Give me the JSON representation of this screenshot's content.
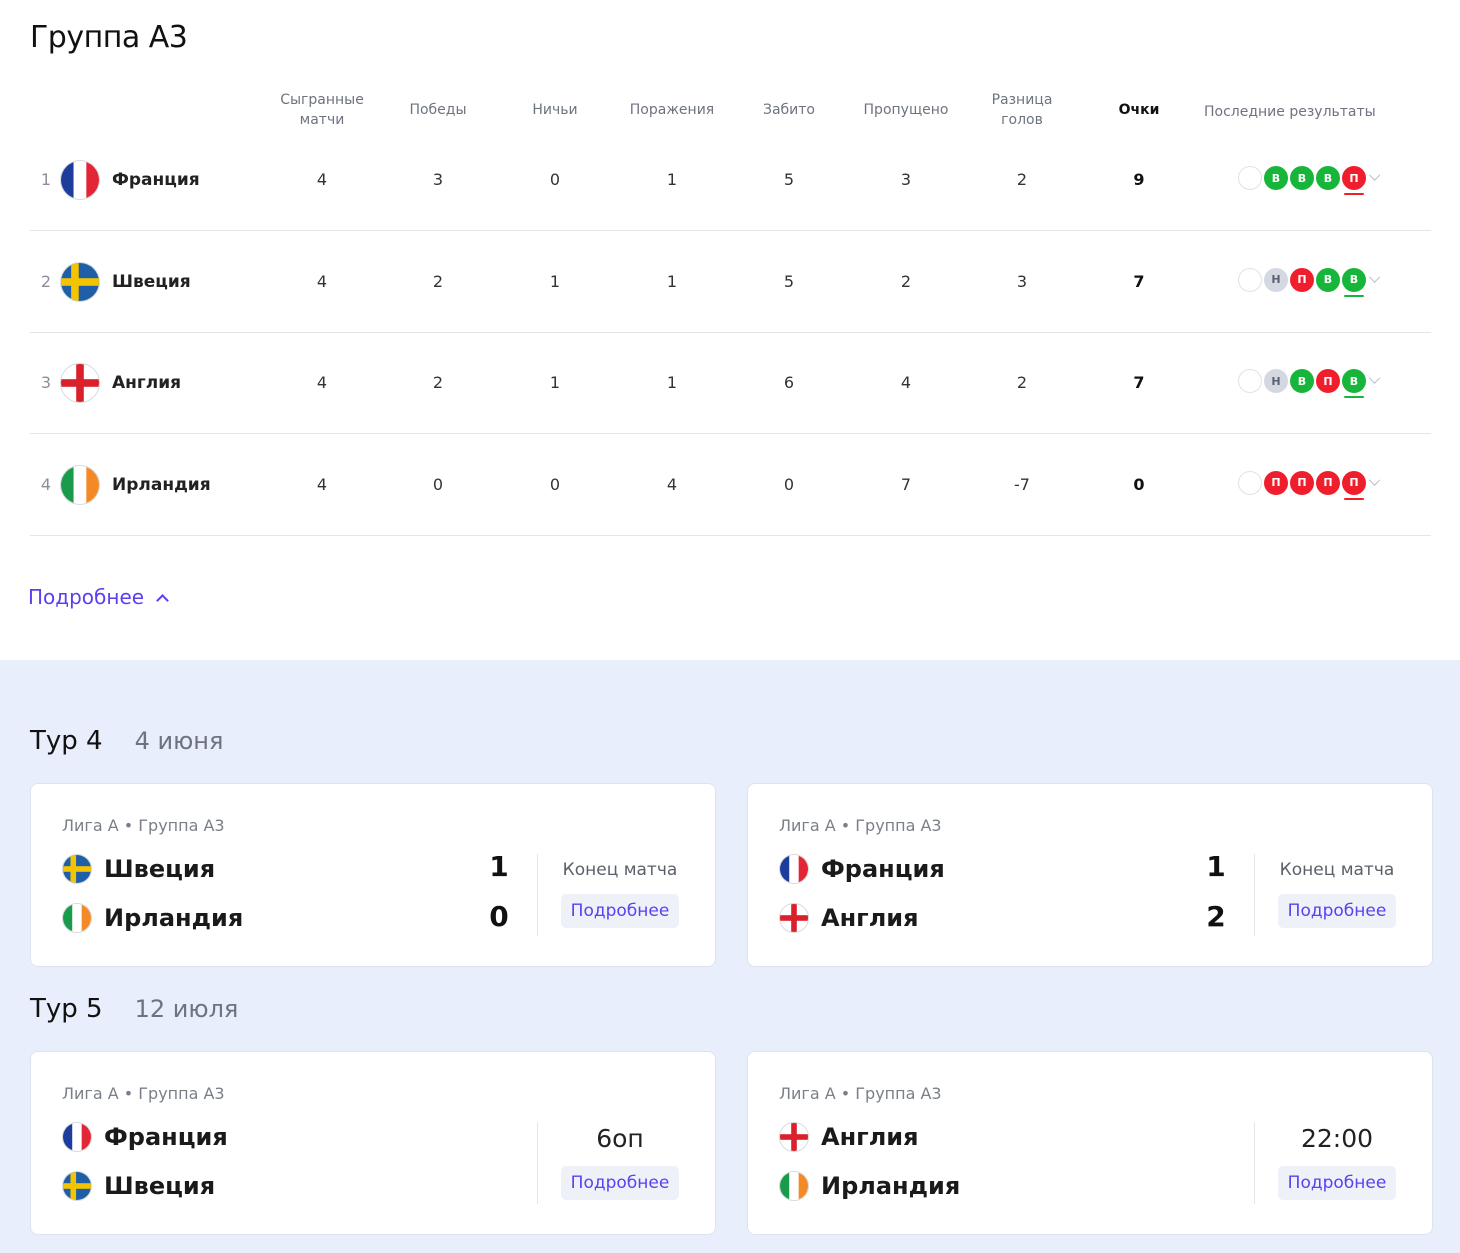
{
  "group_title": "Группа А3",
  "columns": {
    "played_1": "Сыгранные",
    "played_2": "матчи",
    "wins": "Победы",
    "draws": "Ничьи",
    "losses": "Поражения",
    "scored": "Забито",
    "conceded": "Пропущено",
    "diff_1": "Разница",
    "diff_2": "голов",
    "points": "Очки",
    "form": "Последние результаты"
  },
  "rows": [
    {
      "pos": "1",
      "team": "Франция",
      "flag": "france-flag",
      "played": "4",
      "wins": "3",
      "draws": "0",
      "losses": "1",
      "scored": "5",
      "conceded": "3",
      "diff": "2",
      "points": "9",
      "form": [
        {
          "t": "",
          "k": "empty"
        },
        {
          "t": "В",
          "k": "win"
        },
        {
          "t": "В",
          "k": "win"
        },
        {
          "t": "В",
          "k": "win"
        },
        {
          "t": "П",
          "k": "loss"
        }
      ]
    },
    {
      "pos": "2",
      "team": "Швеция",
      "flag": "sweden-flag",
      "played": "4",
      "wins": "2",
      "draws": "1",
      "losses": "1",
      "scored": "5",
      "conceded": "2",
      "diff": "3",
      "points": "7",
      "form": [
        {
          "t": "",
          "k": "empty"
        },
        {
          "t": "Н",
          "k": "draw"
        },
        {
          "t": "П",
          "k": "loss"
        },
        {
          "t": "В",
          "k": "win"
        },
        {
          "t": "В",
          "k": "win"
        }
      ]
    },
    {
      "pos": "3",
      "team": "Англия",
      "flag": "england-flag",
      "played": "4",
      "wins": "2",
      "draws": "1",
      "losses": "1",
      "scored": "6",
      "conceded": "4",
      "diff": "2",
      "points": "7",
      "form": [
        {
          "t": "",
          "k": "empty"
        },
        {
          "t": "Н",
          "k": "draw"
        },
        {
          "t": "В",
          "k": "win"
        },
        {
          "t": "П",
          "k": "loss"
        },
        {
          "t": "В",
          "k": "win"
        }
      ]
    },
    {
      "pos": "4",
      "team": "Ирландия",
      "flag": "ireland-flag",
      "played": "4",
      "wins": "0",
      "draws": "0",
      "losses": "4",
      "scored": "0",
      "conceded": "7",
      "diff": "-7",
      "points": "0",
      "form": [
        {
          "t": "",
          "k": "empty"
        },
        {
          "t": "П",
          "k": "loss"
        },
        {
          "t": "П",
          "k": "loss"
        },
        {
          "t": "П",
          "k": "loss"
        },
        {
          "t": "П",
          "k": "loss"
        }
      ]
    }
  ],
  "more_link": "Подробнее",
  "rounds": [
    {
      "title": "Тур 4",
      "date": "4 июня",
      "matches": [
        {
          "league": "Лига А • Группа А3",
          "home": "Швеция",
          "home_flag": "sweden-flag",
          "away": "Ирландия",
          "away_flag": "ireland-flag",
          "home_score": "1",
          "away_score": "0",
          "status": "Конец матча",
          "details": "Подробнее"
        },
        {
          "league": "Лига А • Группа А3",
          "home": "Франция",
          "home_flag": "france-flag",
          "away": "Англия",
          "away_flag": "england-flag",
          "home_score": "1",
          "away_score": "2",
          "status": "Конец матча",
          "details": "Подробнее"
        }
      ]
    },
    {
      "title": "Тур 5",
      "date": "12 июля",
      "matches": [
        {
          "league": "Лига А • Группа А3",
          "home": "Франция",
          "home_flag": "france-flag",
          "away": "Швеция",
          "away_flag": "sweden-flag",
          "home_score": "",
          "away_score": "",
          "status": "6оп",
          "details": "Подробнее"
        },
        {
          "league": "Лига А • Группа А3",
          "home": "Англия",
          "home_flag": "england-flag",
          "away": "Ирландия",
          "away_flag": "ireland-flag",
          "home_score": "",
          "away_score": "",
          "status": "22:00",
          "details": "Подробнее"
        }
      ]
    }
  ]
}
